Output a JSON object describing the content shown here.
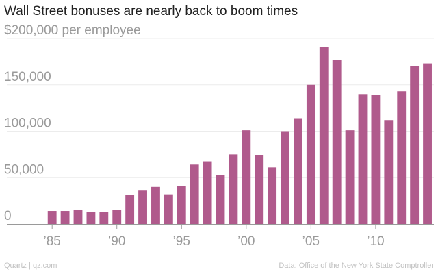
{
  "title": "Wall Street bonuses are nearly back to boom times",
  "source_left": "Quartz | qz.com",
  "source_right": "Data: Office of the New York State Comptroller",
  "chart_data": {
    "type": "bar",
    "title": "Wall Street bonuses are nearly back to boom times",
    "xlabel": "",
    "ylabel": "",
    "x": [
      1982,
      1983,
      1984,
      1985,
      1986,
      1987,
      1988,
      1989,
      1990,
      1991,
      1992,
      1993,
      1994,
      1995,
      1996,
      1997,
      1998,
      1999,
      2000,
      2001,
      2002,
      2003,
      2004,
      2005,
      2006,
      2007,
      2008,
      2009,
      2010,
      2011,
      2012,
      2013,
      2014
    ],
    "values": [
      null,
      null,
      null,
      14000,
      14000,
      15500,
      13000,
      13000,
      15000,
      31000,
      36000,
      40000,
      32000,
      41000,
      64000,
      67500,
      53000,
      75000,
      101000,
      74000,
      61000,
      100000,
      114000,
      150000,
      191000,
      177000,
      101000,
      140000,
      139000,
      112000,
      143000,
      170000,
      173000
    ],
    "color": "#b05a8c",
    "ylim": [
      0,
      200000
    ],
    "grid": true,
    "y_ticks": [
      {
        "value": 0,
        "label": "0"
      },
      {
        "value": 50000,
        "label": "50,000"
      },
      {
        "value": 100000,
        "label": "100,000"
      },
      {
        "value": 150000,
        "label": "150,000"
      },
      {
        "value": 200000,
        "label": "$200,000 per employee"
      }
    ],
    "x_ticks": [
      {
        "value": 1985,
        "label": "’85"
      },
      {
        "value": 1990,
        "label": "’90"
      },
      {
        "value": 1995,
        "label": "’95"
      },
      {
        "value": 2000,
        "label": "’00"
      },
      {
        "value": 2005,
        "label": "’05"
      },
      {
        "value": 2010,
        "label": "’10"
      }
    ]
  }
}
